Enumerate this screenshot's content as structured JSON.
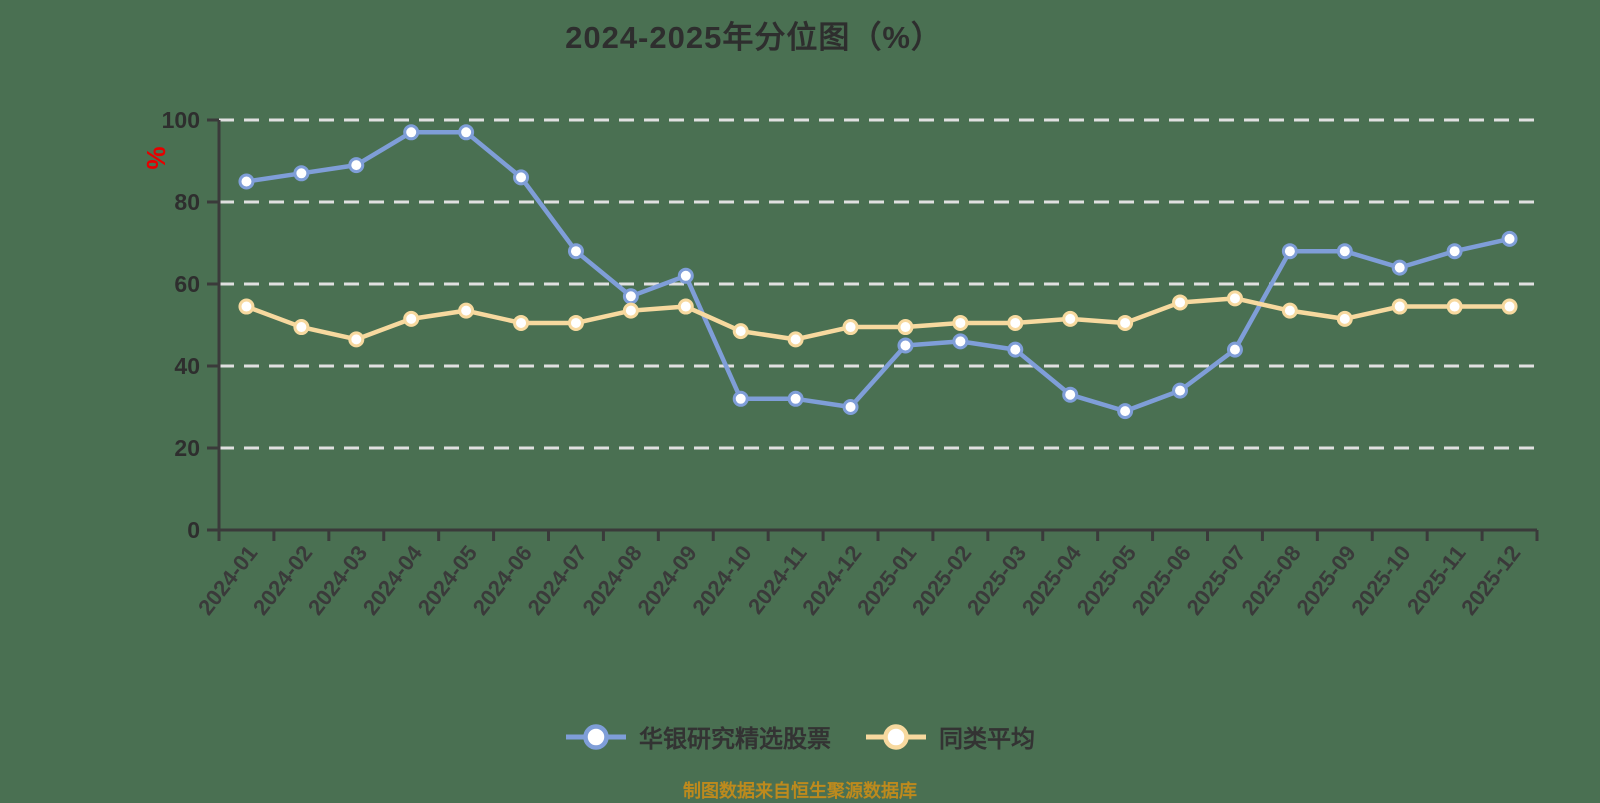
{
  "page": {
    "background_color": "#4a7052"
  },
  "title": {
    "text": "2024-2025年分位图（%）",
    "color": "#2e2e2e"
  },
  "y_axis": {
    "unit_symbol": "%",
    "unit_color": "#e60000",
    "tick_labels": [
      "0",
      "20",
      "40",
      "60",
      "80",
      "100"
    ],
    "label_color": "#2e2e2e",
    "axis_color": "#3a3a3a"
  },
  "x_axis": {
    "label_color": "#3a3a3a",
    "axis_color": "#3a3a3a"
  },
  "grid": {
    "line_color": "#e0e0e0",
    "style": "dashed"
  },
  "legend": [
    {
      "label": "华银研究精选股票",
      "color": "#7f9ed8"
    },
    {
      "label": "同类平均",
      "color": "#f7d99f"
    }
  ],
  "footer": {
    "text": "制图数据来自恒生聚源数据库",
    "color": "#bd8a1d"
  },
  "chart_data": {
    "type": "line",
    "title": "2024-2025年分位图（%）",
    "categories": [
      "2024-01",
      "2024-02",
      "2024-03",
      "2024-04",
      "2024-05",
      "2024-06",
      "2024-07",
      "2024-08",
      "2024-09",
      "2024-10",
      "2024-11",
      "2024-12",
      "2025-01",
      "2025-02",
      "2025-03",
      "2025-04",
      "2025-05",
      "2025-06",
      "2025-07",
      "2025-08",
      "2025-09",
      "2025-10",
      "2025-11",
      "2025-12"
    ],
    "series": [
      {
        "name": "华银研究精选股票",
        "color": "#7f9ed8",
        "values": [
          85,
          87,
          89,
          97,
          97,
          86,
          68,
          57,
          62,
          32,
          32,
          30,
          45,
          46,
          44,
          33,
          29,
          34,
          44,
          68,
          68,
          64,
          68,
          71
        ]
      },
      {
        "name": "同类平均",
        "color": "#f7d99f",
        "values": [
          54.5,
          49.5,
          46.5,
          51.5,
          53.5,
          50.5,
          50.5,
          53.5,
          54.5,
          48.5,
          46.5,
          49.5,
          49.5,
          50.5,
          50.5,
          51.5,
          50.5,
          55.5,
          56.5,
          53.5,
          51.5,
          54.5,
          54.5,
          54.5
        ]
      }
    ],
    "xlabel": "",
    "ylabel": "%",
    "ylim": [
      0,
      100
    ],
    "y_ticks": [
      0,
      20,
      40,
      60,
      80,
      100
    ],
    "grid": "horizontal-dashed",
    "legend_position": "bottom",
    "marker": "circle-white-fill"
  }
}
